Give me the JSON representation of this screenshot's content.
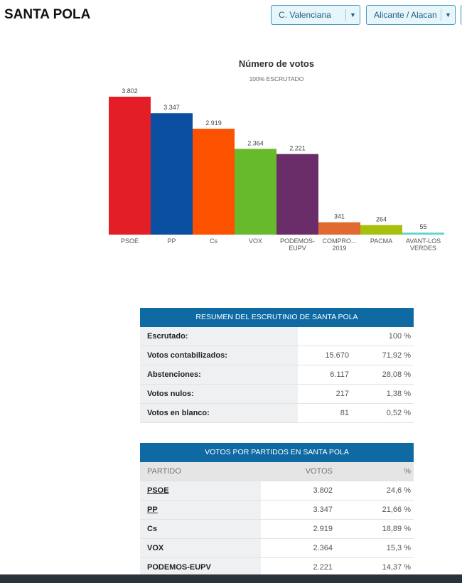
{
  "header": {
    "title": "SANTA POLA",
    "region_select": "C. Valenciana",
    "province_select": "Alicante / Alacan"
  },
  "chart_data": {
    "type": "bar",
    "title": "Número de votos",
    "subtitle": "100% ESCRUTADO",
    "categories": [
      "PSOE",
      "PP",
      "Cs",
      "VOX",
      "PODEMOS-EUPV",
      "COMPRO... 2019",
      "PACMA",
      "AVANT-LOS VERDES"
    ],
    "values": [
      3802,
      3347,
      2919,
      2364,
      2221,
      341,
      264,
      55
    ],
    "labels": [
      "3.802",
      "3.347",
      "2.919",
      "2.364",
      "2.221",
      "341",
      "264",
      "55"
    ],
    "colors": [
      "#e41e26",
      "#0a4fa0",
      "#fc5200",
      "#67ba2c",
      "#6a2d6a",
      "#e06a30",
      "#a8bf0c",
      "#5fd5cf"
    ]
  },
  "summary": {
    "title": "RESUMEN DEL ESCRUTINIO DE SANTA POLA",
    "rows": [
      {
        "label": "Escrutado:",
        "value": "",
        "pct": "100 %"
      },
      {
        "label": "Votos contabilizados:",
        "value": "15.670",
        "pct": "71,92 %"
      },
      {
        "label": "Abstenciones:",
        "value": "6.117",
        "pct": "28,08 %"
      },
      {
        "label": "Votos nulos:",
        "value": "217",
        "pct": "1,38 %"
      },
      {
        "label": "Votos en blanco:",
        "value": "81",
        "pct": "0,52 %"
      }
    ]
  },
  "parties": {
    "title": "VOTOS POR PARTIDOS EN SANTA POLA",
    "headers": [
      "PARTIDO",
      "VOTOS",
      "%"
    ],
    "rows": [
      {
        "name": "PSOE",
        "votes": "3.802",
        "pct": "24,6 %"
      },
      {
        "name": "PP",
        "votes": "3.347",
        "pct": "21,66 %"
      },
      {
        "name": "Cs",
        "votes": "2.919",
        "pct": "18,89 %"
      },
      {
        "name": "VOX",
        "votes": "2.364",
        "pct": "15,3 %"
      },
      {
        "name": "PODEMOS-EUPV",
        "votes": "2.221",
        "pct": "14,37 %"
      }
    ]
  }
}
